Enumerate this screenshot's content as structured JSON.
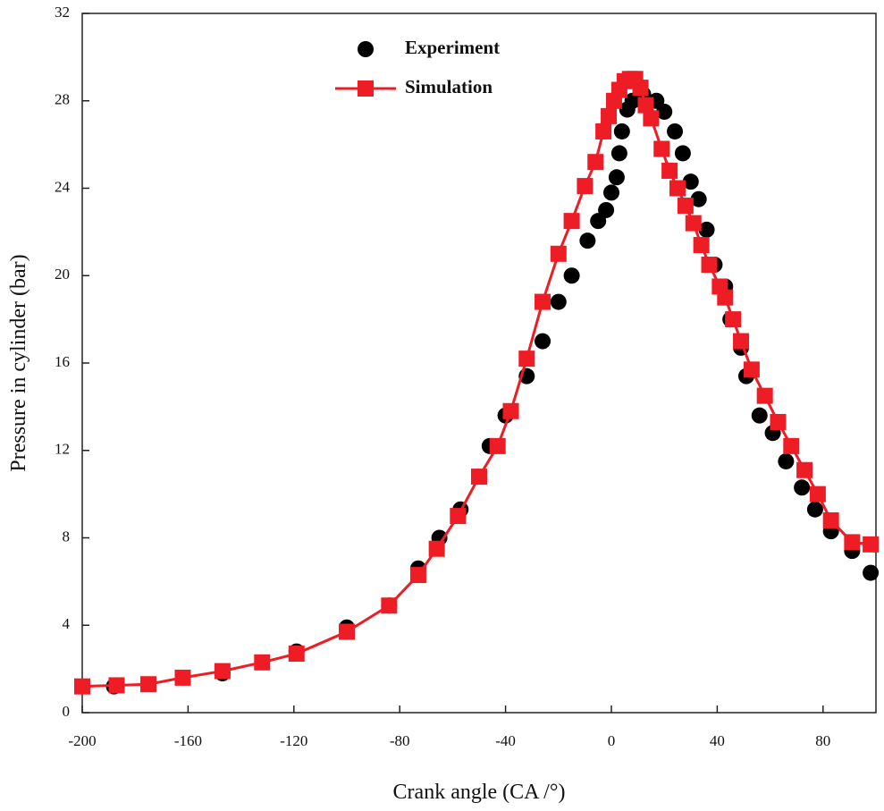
{
  "chart_data": {
    "type": "line",
    "xlabel": "Crank angle (CA /°)",
    "ylabel": "Pressure in cylinder (bar)",
    "xlim": [
      -200,
      100
    ],
    "ylim": [
      0,
      32
    ],
    "xticks": [
      -200,
      -160,
      -120,
      -80,
      -40,
      0,
      40,
      80
    ],
    "yticks": [
      0,
      4,
      8,
      12,
      16,
      20,
      24,
      28,
      32
    ],
    "grid": false,
    "legend": "upper left",
    "series": [
      {
        "name": "Experiment",
        "color": "#000000",
        "style": "markers",
        "x": [
          -188,
          -147,
          -119,
          -100,
          -84,
          -73,
          -65,
          -57,
          -46,
          -40,
          -32,
          -26,
          -20,
          -15,
          -9,
          -5,
          -2,
          0,
          2,
          3,
          4,
          6,
          8,
          12,
          17,
          20,
          24,
          27,
          30,
          33,
          36,
          39,
          43,
          45,
          49,
          51,
          56,
          61,
          66,
          72,
          77,
          83,
          91,
          98
        ],
        "values": [
          1.2,
          1.8,
          2.8,
          3.9,
          4.9,
          6.6,
          8,
          9.3,
          12.2,
          13.6,
          15.4,
          17,
          18.8,
          20,
          21.6,
          22.5,
          23,
          23.8,
          24.5,
          25.6,
          26.6,
          27.6,
          28,
          28.3,
          28,
          27.5,
          26.6,
          25.6,
          24.3,
          23.5,
          22.1,
          20.5,
          19.5,
          18,
          16.7,
          15.4,
          13.6,
          12.8,
          11.5,
          10.3,
          9.3,
          8.3,
          7.4,
          6.4
        ]
      },
      {
        "name": "Simulation",
        "color": "#ee1c24",
        "style": "line+markers",
        "x": [
          -200,
          -187,
          -175,
          -162,
          -147,
          -132,
          -119,
          -100,
          -84,
          -73,
          -66,
          -58,
          -50,
          -43,
          -38,
          -32,
          -26,
          -20,
          -15,
          -10,
          -6,
          -3,
          -1,
          1,
          3,
          5,
          7,
          9,
          11,
          13,
          15,
          19,
          22,
          25,
          28,
          31,
          34,
          37,
          41,
          43,
          46,
          49,
          53,
          58,
          63,
          68,
          73,
          78,
          83,
          91,
          98
        ],
        "values": [
          1.2,
          1.25,
          1.3,
          1.6,
          1.9,
          2.3,
          2.7,
          3.7,
          4.9,
          6.3,
          7.5,
          9,
          10.8,
          12.2,
          13.8,
          16.2,
          18.8,
          21,
          22.5,
          24.1,
          25.2,
          26.6,
          27.3,
          28,
          28.5,
          28.9,
          29,
          29,
          28.6,
          27.8,
          27.2,
          25.8,
          24.8,
          24,
          23.2,
          22.4,
          21.4,
          20.5,
          19.5,
          19,
          18,
          17,
          15.7,
          14.5,
          13.3,
          12.2,
          11.1,
          10,
          8.8,
          7.8,
          7.7
        ]
      }
    ]
  }
}
